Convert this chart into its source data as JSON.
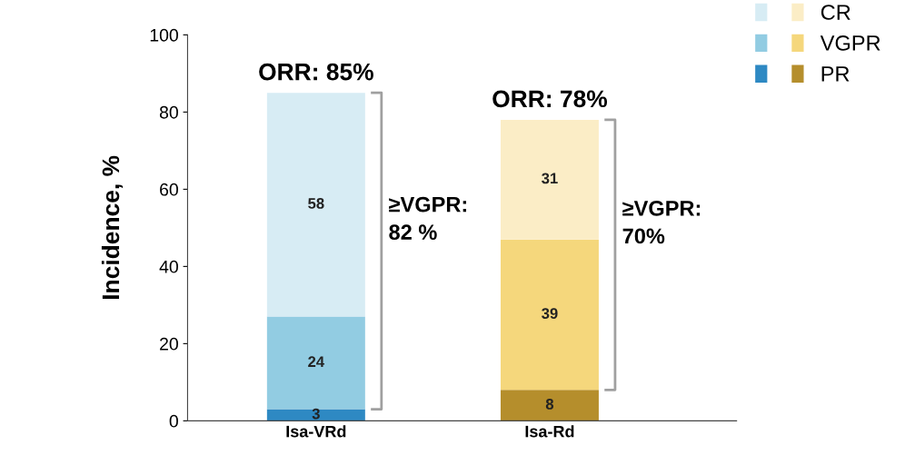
{
  "chart_data": {
    "type": "bar",
    "stacked": true,
    "ylabel": "Incidence, %",
    "categories": [
      "Isa-VRd",
      "Isa-Rd"
    ],
    "series": [
      {
        "name": "PR",
        "colors": [
          "#2e89c3",
          "#b58e2c"
        ],
        "values": [
          3,
          8
        ]
      },
      {
        "name": "VGPR",
        "colors": [
          "#92cce2",
          "#f5d77c"
        ],
        "values": [
          24,
          39
        ]
      },
      {
        "name": "CR",
        "colors": [
          "#d7ecf4",
          "#fbedc6"
        ],
        "values": [
          58,
          31
        ]
      }
    ],
    "ylim": [
      0,
      100
    ],
    "yticks": [
      0,
      20,
      40,
      60,
      80,
      100
    ],
    "data_labels": true,
    "grid": false,
    "legend": "top right",
    "annotations": [
      {
        "text": "ORR: 85%",
        "x": "Isa-VRd",
        "y": 85
      },
      {
        "text": "ORR: 78%",
        "x": "Isa-Rd",
        "y": 78
      },
      "≥VGPR:\n82 %",
      "≥VGPR:\n70%"
    ]
  }
}
